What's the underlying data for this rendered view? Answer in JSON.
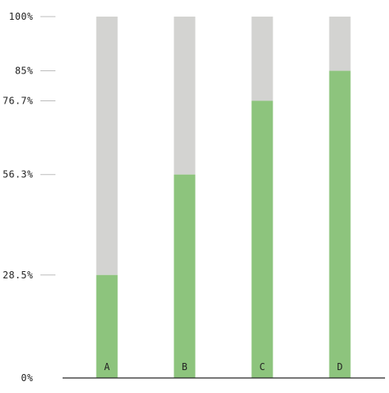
{
  "chart_data": {
    "type": "bar",
    "stacked_percent": true,
    "categories": [
      "A",
      "B",
      "C",
      "D"
    ],
    "values": [
      28.5,
      56.3,
      76.7,
      85
    ],
    "series": [
      {
        "values": [
          28.5,
          56.3,
          76.7,
          85
        ],
        "color": "#8dc47d"
      },
      {
        "values": [
          71.5,
          43.7,
          23.3,
          15
        ],
        "color": "#d3d3d1"
      }
    ],
    "y_ticks": [
      {
        "value": 0,
        "label": "0%"
      },
      {
        "value": 28.5,
        "label": "28.5%"
      },
      {
        "value": 56.3,
        "label": "56.3%"
      },
      {
        "value": 76.7,
        "label": "76.7%"
      },
      {
        "value": 85,
        "label": "85%"
      },
      {
        "value": 100,
        "label": "100%"
      }
    ],
    "ylim": [
      0,
      100
    ],
    "title": "",
    "xlabel": "",
    "ylabel": "",
    "grid": false,
    "legend": "none"
  },
  "colors": {
    "filled": "#8dc47d",
    "remainder": "#d3d3d1",
    "axis": "#222222",
    "tick": "#bbbbbb"
  }
}
